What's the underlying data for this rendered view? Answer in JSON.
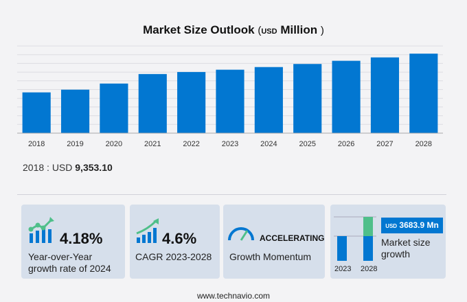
{
  "chart_data": {
    "type": "bar",
    "title": "Market Size Outlook",
    "unit_prefix": "USD",
    "unit": "Million",
    "categories": [
      "2018",
      "2019",
      "2020",
      "2021",
      "2022",
      "2023",
      "2024",
      "2025",
      "2026",
      "2027",
      "2028"
    ],
    "values": [
      9353.1,
      9977,
      11381,
      13563,
      14031,
      14556,
      15165,
      15870,
      16600,
      17380,
      18240
    ],
    "ylim": [
      0,
      20000
    ],
    "grid": true,
    "bar_color": "#0277d1"
  },
  "base": {
    "label": "2018 : USD",
    "value": "9,353.10"
  },
  "cards": [
    {
      "value": "4.18%",
      "label1": "Year-over-Year",
      "label2": "growth rate of 2024",
      "icon": "bar-chart-trend-icon"
    },
    {
      "value": "4.6%",
      "label1": "CAGR  2023-2028",
      "icon": "growth-arrow-icon"
    },
    {
      "value": "ACCELERATING",
      "label1": "Growth Momentum",
      "icon": "speedometer-icon"
    },
    {
      "badge_usd": "USD",
      "badge_value": "3683.9 Mn",
      "label1": "Market size",
      "label2": "growth",
      "year1": "2023",
      "year2": "2028",
      "icon": "stacked-bar-icon"
    }
  ],
  "colors": {
    "blue": "#0277d1",
    "green": "#4fbf8a",
    "card": "#d6dfeb"
  },
  "footer": "www.technavio.com"
}
